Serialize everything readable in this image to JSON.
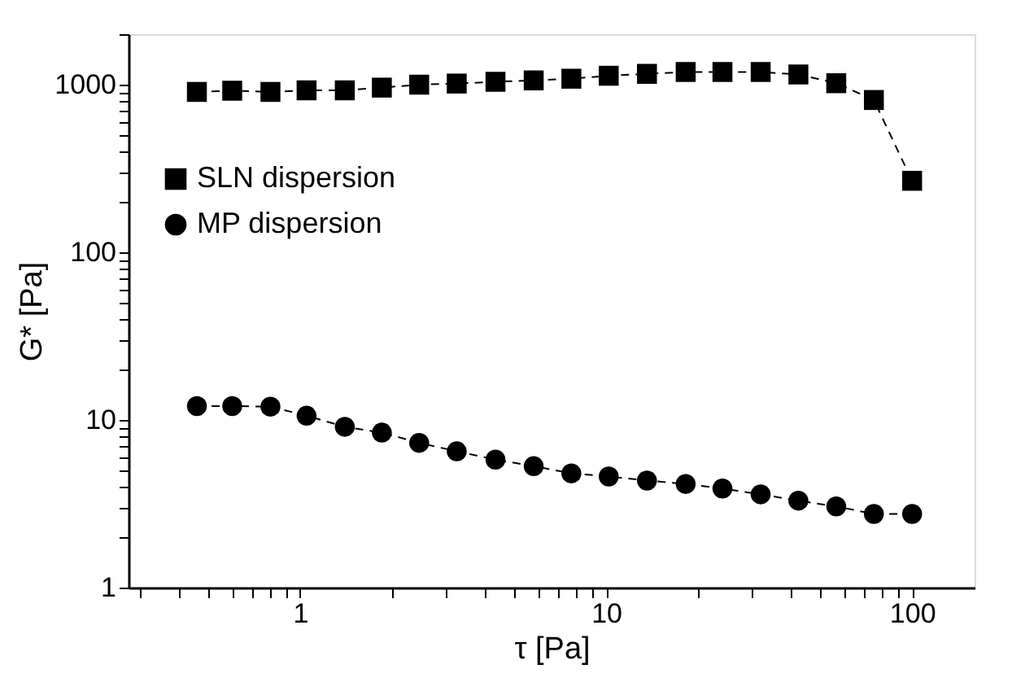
{
  "chart_data": {
    "type": "line",
    "xlabel": "τ [Pa]",
    "ylabel": "G* [Pa]",
    "log": "xy",
    "grid": false,
    "legend": "left",
    "line_style": "dashed",
    "x": [
      0.46,
      0.6,
      0.8,
      1.05,
      1.4,
      1.85,
      2.45,
      3.25,
      4.35,
      5.8,
      7.7,
      10.2,
      13.6,
      18.2,
      24,
      32,
      42.5,
      56.5,
      75,
      100
    ],
    "xlim": [
      0.275,
      160
    ],
    "ylim": [
      1,
      2000
    ],
    "xticks": [
      {
        "value": 0.3,
        "label": null
      },
      {
        "value": 0.4,
        "label": null
      },
      {
        "value": 0.5,
        "label": null
      },
      {
        "value": 0.6,
        "label": null
      },
      {
        "value": 0.7,
        "label": null
      },
      {
        "value": 0.8,
        "label": null
      },
      {
        "value": 0.9,
        "label": null
      },
      1,
      {
        "value": 2,
        "label": null
      },
      {
        "value": 3,
        "label": null
      },
      {
        "value": 4,
        "label": null
      },
      {
        "value": 5,
        "label": null
      },
      {
        "value": 6,
        "label": null
      },
      {
        "value": 7,
        "label": null
      },
      {
        "value": 8,
        "label": null
      },
      {
        "value": 9,
        "label": null
      },
      10,
      {
        "value": 20,
        "label": null
      },
      {
        "value": 30,
        "label": null
      },
      {
        "value": 40,
        "label": null
      },
      {
        "value": 50,
        "label": null
      },
      {
        "value": 60,
        "label": null
      },
      {
        "value": 70,
        "label": null
      },
      {
        "value": 80,
        "label": null
      },
      {
        "value": 90,
        "label": null
      },
      100
    ],
    "yticks": [
      1,
      {
        "value": 2,
        "label": null
      },
      {
        "value": 3,
        "label": null
      },
      {
        "value": 4,
        "label": null
      },
      {
        "value": 5,
        "label": null
      },
      {
        "value": 6,
        "label": null
      },
      {
        "value": 7,
        "label": null
      },
      {
        "value": 8,
        "label": null
      },
      {
        "value": 9,
        "label": null
      },
      10,
      {
        "value": 20,
        "label": null
      },
      {
        "value": 30,
        "label": null
      },
      {
        "value": 40,
        "label": null
      },
      {
        "value": 50,
        "label": null
      },
      {
        "value": 60,
        "label": null
      },
      {
        "value": 70,
        "label": null
      },
      {
        "value": 80,
        "label": null
      },
      {
        "value": 90,
        "label": null
      },
      100,
      {
        "value": 200,
        "label": null
      },
      {
        "value": 300,
        "label": null
      },
      {
        "value": 400,
        "label": null
      },
      {
        "value": 500,
        "label": null
      },
      {
        "value": 600,
        "label": null
      },
      {
        "value": 700,
        "label": null
      },
      {
        "value": 800,
        "label": null
      },
      {
        "value": 900,
        "label": null
      },
      1000,
      {
        "value": 2000,
        "label": null
      }
    ],
    "series": [
      {
        "name": "SLN dispersion",
        "color": "#000000",
        "marker": "square",
        "values": [
          905,
          920,
          905,
          925,
          925,
          960,
          1000,
          1015,
          1040,
          1060,
          1085,
          1130,
          1160,
          1190,
          1190,
          1190,
          1150,
          1020,
          810,
          267
        ]
      },
      {
        "name": "MP dispersion",
        "color": "#000000",
        "marker": "circle",
        "values": [
          12.1,
          12.1,
          12,
          10.6,
          9.1,
          8.4,
          7.3,
          6.5,
          5.8,
          5.3,
          4.8,
          4.6,
          4.35,
          4.15,
          3.9,
          3.6,
          3.3,
          3.05,
          2.75,
          2.75
        ]
      }
    ]
  }
}
